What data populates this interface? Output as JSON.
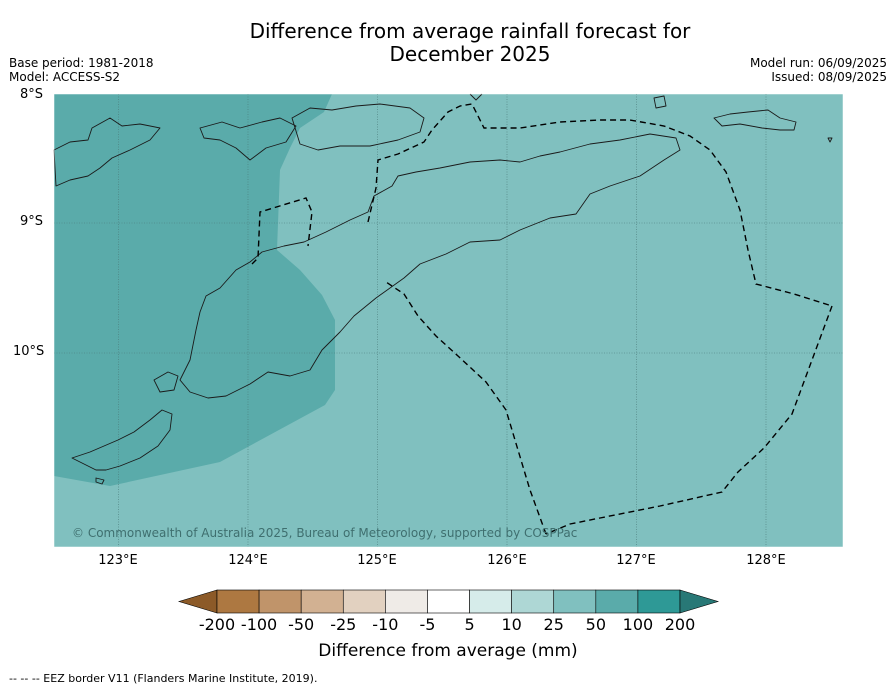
{
  "header": {
    "title_line1": "Difference from average rainfall forecast for",
    "title_line2": "December 2025",
    "base_period": "Base period: 1981-2018",
    "model": "Model: ACCESS-S2",
    "model_run": "Model run: 06/09/2025",
    "issued": "Issued: 08/09/2025"
  },
  "map": {
    "latitude_labels": [
      "8°S",
      "9°S",
      "10°S"
    ],
    "longitude_labels": [
      "123°E",
      "124°E",
      "125°E",
      "126°E",
      "127°E",
      "128°E"
    ],
    "copyright": "© Commonwealth of Australia 2025, Bureau of Meteorology, supported by COSPPac",
    "colors": {
      "region_50_100": "#5aabaa",
      "region_25_50": "#80c0bf",
      "coastline": "#1a1a1a",
      "eez_border": "#000000"
    }
  },
  "colorbar": {
    "title": "Difference from average (mm)",
    "ticks": [
      "-200",
      "-100",
      "-50",
      "-25",
      "-10",
      "-5",
      "5",
      "10",
      "25",
      "50",
      "100",
      "200"
    ],
    "colors": [
      "#8c5a28",
      "#ad7841",
      "#c0946a",
      "#d2b192",
      "#e2d1c0",
      "#efebe7",
      "#ffffff",
      "#d6ecea",
      "#aed7d5",
      "#80c0bf",
      "#5aabaa",
      "#2e9996",
      "#287876"
    ]
  },
  "footnote": "--  --  -- EEZ border V11 (Flanders Marine Institute, 2019)."
}
